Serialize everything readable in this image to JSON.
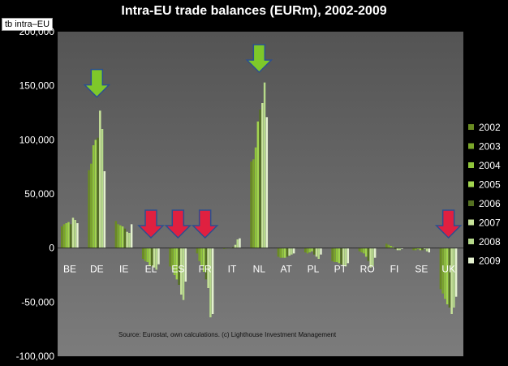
{
  "chart_data": {
    "type": "bar",
    "title": "Intra-EU trade balances (EURm), 2002-2009",
    "series_label": "tb intra–EU",
    "source": "Source: Eurostat, own calculations. (c) Lighthouse Investment Management",
    "categories": [
      "BE",
      "DE",
      "IE",
      "EL",
      "ES",
      "FR",
      "IT",
      "NL",
      "AT",
      "PL",
      "PT",
      "RO",
      "FI",
      "SE",
      "UK"
    ],
    "ylim": [
      -100000,
      200000
    ],
    "yticks": [
      -100000,
      -50000,
      0,
      50000,
      100000,
      150000,
      200000
    ],
    "ytick_labels": [
      "-100,000",
      "-50,000",
      "0",
      "50,000",
      "100,000",
      "150,000",
      "200,000"
    ],
    "legend_position": "right",
    "series": [
      {
        "name": "2002",
        "color": "#6a8b22",
        "values": [
          20000,
          72000,
          25000,
          -10000,
          -17000,
          -5000,
          -1000,
          80000,
          -8000,
          -4000,
          -12000,
          -3000,
          4000,
          -2000,
          -38000
        ]
      },
      {
        "name": "2003",
        "color": "#7ba62a",
        "values": [
          22000,
          78000,
          22000,
          -12000,
          -20000,
          -12000,
          -500,
          82000,
          -9000,
          -5000,
          -13000,
          -4000,
          3000,
          -2000,
          -42000
        ]
      },
      {
        "name": "2004",
        "color": "#8fc43a",
        "values": [
          23000,
          95000,
          21000,
          -13000,
          -25000,
          -16000,
          0,
          93000,
          -9000,
          -4000,
          -13000,
          -5000,
          2000,
          -1000,
          -47000
        ]
      },
      {
        "name": "2005",
        "color": "#a2d54f",
        "values": [
          24000,
          100000,
          20000,
          -16000,
          -29000,
          -22000,
          500,
          117000,
          -9000,
          -3000,
          -14000,
          -8000,
          1000,
          -2000,
          -52000
        ]
      },
      {
        "name": "2006",
        "color": "#547021",
        "values": [
          22000,
          102000,
          18000,
          -17000,
          -34000,
          -29000,
          1000,
          128000,
          -8000,
          -6000,
          -15000,
          -12000,
          -1000,
          -2000,
          -55000
        ]
      },
      {
        "name": "2007",
        "color": "#c8e49a",
        "values": [
          28000,
          127000,
          15000,
          -18000,
          -43000,
          -37000,
          3000,
          134000,
          -7000,
          -8000,
          -16000,
          -18000,
          -2000,
          -1000,
          -61000
        ]
      },
      {
        "name": "2008",
        "color": "#b5d98a",
        "values": [
          26000,
          110000,
          14000,
          -20000,
          -48000,
          -64000,
          8000,
          153000,
          -6000,
          -10000,
          -17000,
          -17000,
          -2000,
          -3000,
          -55000
        ]
      },
      {
        "name": "2009",
        "color": "#e4f1cf",
        "values": [
          23000,
          71000,
          22000,
          -15000,
          -31000,
          -61000,
          9000,
          121000,
          -5000,
          -6000,
          -14000,
          -9000,
          -1000,
          -4000,
          -45000
        ]
      }
    ],
    "annotations": [
      {
        "category": "DE",
        "color": "#7ec82a",
        "direction": "down",
        "level": 165000
      },
      {
        "category": "EL",
        "color": "#e02040",
        "direction": "down",
        "level": 35000
      },
      {
        "category": "ES",
        "color": "#e02040",
        "direction": "down",
        "level": 35000
      },
      {
        "category": "FR",
        "color": "#e02040",
        "direction": "down",
        "level": 35000
      },
      {
        "category": "NL",
        "color": "#7ec82a",
        "direction": "down",
        "level": 188000
      },
      {
        "category": "UK",
        "color": "#e02040",
        "direction": "down",
        "level": 35000
      }
    ]
  }
}
